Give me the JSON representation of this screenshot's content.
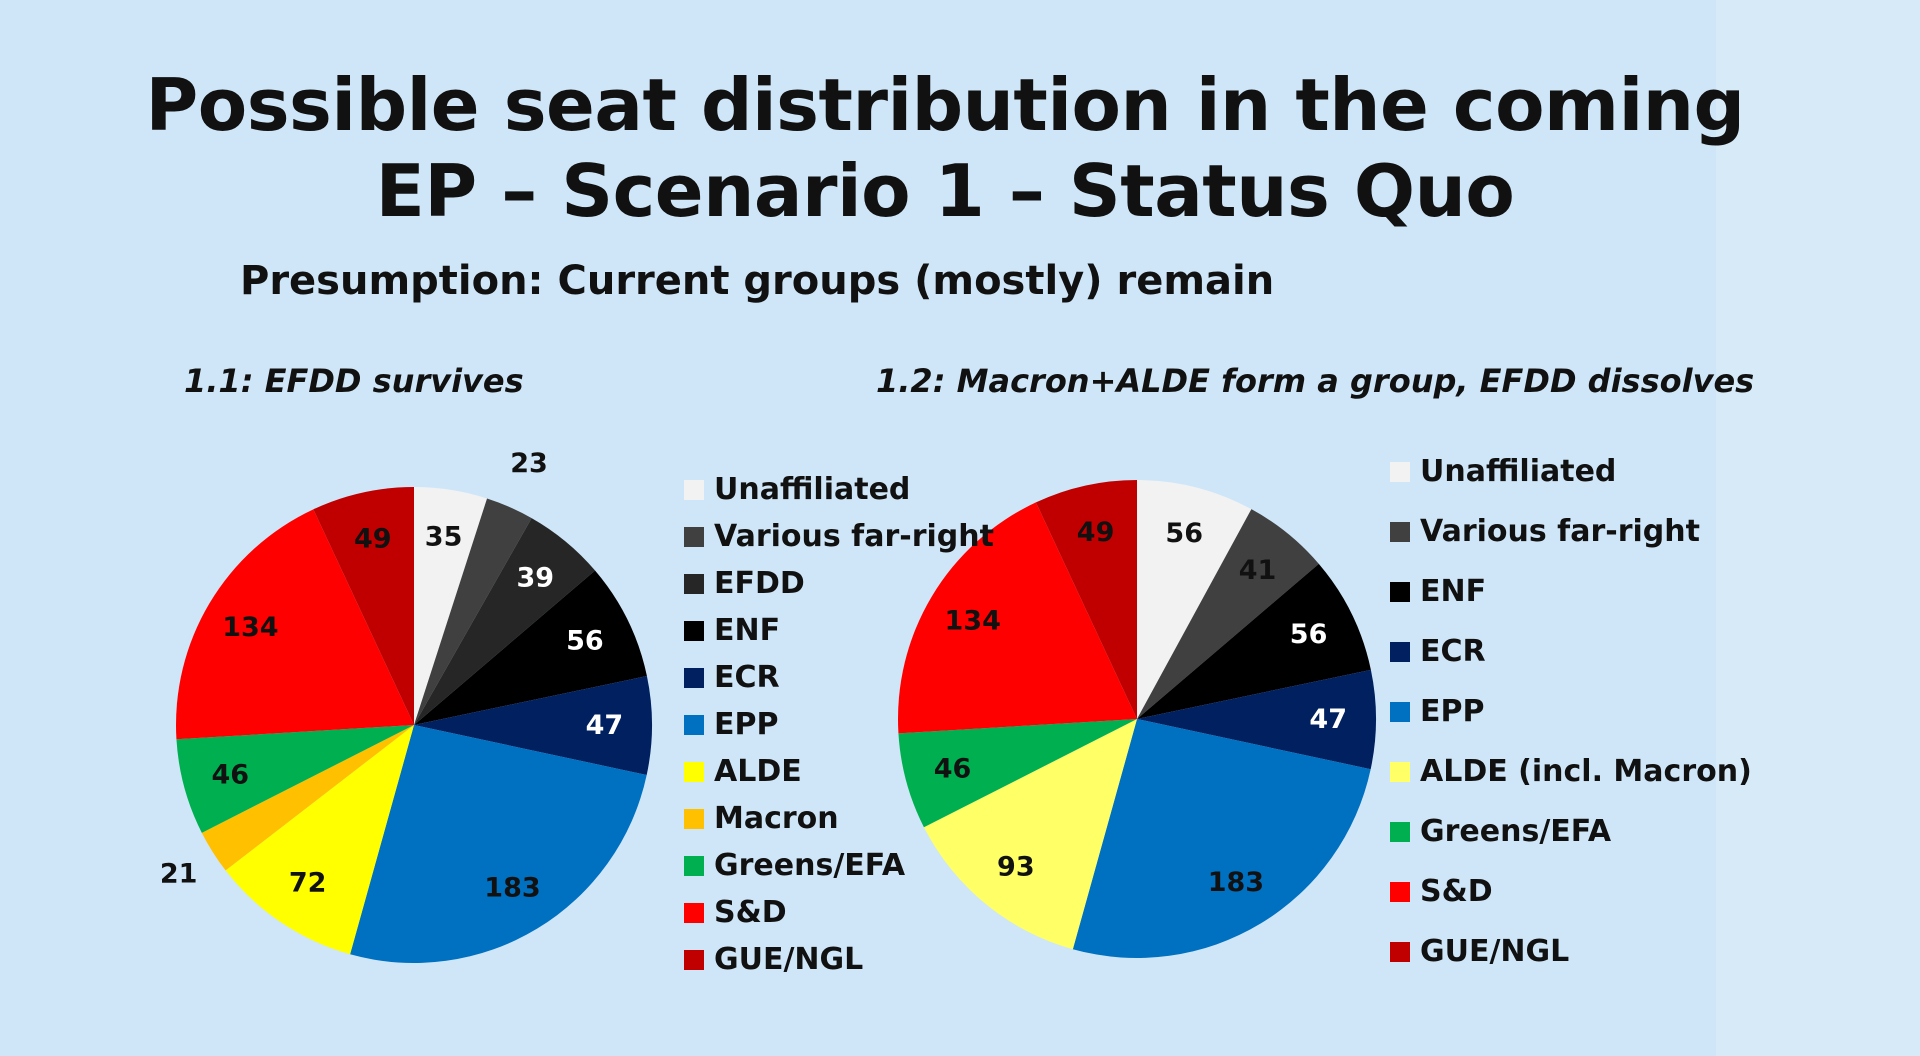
{
  "title_line1": "Possible seat distribution in the coming",
  "title_line2": "EP – Scenario 1 – Status Quo",
  "subtitle": "Presumption: Current groups (mostly) remain",
  "chart_data": [
    {
      "type": "pie",
      "title": "1.1: EFDD survives",
      "legend_position": "right",
      "slices": [
        {
          "label": "Unaffiliated",
          "value": 35,
          "color": "#f2f2f2",
          "text_color": "#111111"
        },
        {
          "label": "Various far-right",
          "value": 23,
          "color": "#404040",
          "text_color": "#111111"
        },
        {
          "label": "EFDD",
          "value": 39,
          "color": "#262626",
          "text_color": "#ffffff"
        },
        {
          "label": "ENF",
          "value": 56,
          "color": "#000000",
          "text_color": "#ffffff"
        },
        {
          "label": "ECR",
          "value": 47,
          "color": "#002060",
          "text_color": "#ffffff"
        },
        {
          "label": "EPP",
          "value": 183,
          "color": "#0070c0",
          "text_color": "#111111"
        },
        {
          "label": "ALDE",
          "value": 72,
          "color": "#ffff00",
          "text_color": "#111111"
        },
        {
          "label": "Macron",
          "value": 21,
          "color": "#ffc000",
          "text_color": "#111111"
        },
        {
          "label": "Greens/EFA",
          "value": 46,
          "color": "#00b050",
          "text_color": "#111111"
        },
        {
          "label": "S&D",
          "value": 134,
          "color": "#ff0000",
          "text_color": "#111111"
        },
        {
          "label": "GUE/NGL",
          "value": 49,
          "color": "#c00000",
          "text_color": "#111111"
        }
      ]
    },
    {
      "type": "pie",
      "title": "1.2: Macron+ALDE form a group, EFDD dissolves",
      "legend_position": "right",
      "slices": [
        {
          "label": "Unaffiliated",
          "value": 56,
          "color": "#f2f2f2",
          "text_color": "#111111"
        },
        {
          "label": "Various far-right",
          "value": 41,
          "color": "#404040",
          "text_color": "#111111"
        },
        {
          "label": "ENF",
          "value": 56,
          "color": "#000000",
          "text_color": "#ffffff"
        },
        {
          "label": "ECR",
          "value": 47,
          "color": "#002060",
          "text_color": "#ffffff"
        },
        {
          "label": "EPP",
          "value": 183,
          "color": "#0070c0",
          "text_color": "#111111"
        },
        {
          "label": "ALDE (incl. Macron)",
          "value": 93,
          "color": "#ffff66",
          "text_color": "#111111"
        },
        {
          "label": "Greens/EFA",
          "value": 46,
          "color": "#00b050",
          "text_color": "#111111"
        },
        {
          "label": "S&D",
          "value": 134,
          "color": "#ff0000",
          "text_color": "#111111"
        },
        {
          "label": "GUE/NGL",
          "value": 49,
          "color": "#c00000",
          "text_color": "#111111"
        }
      ]
    }
  ]
}
